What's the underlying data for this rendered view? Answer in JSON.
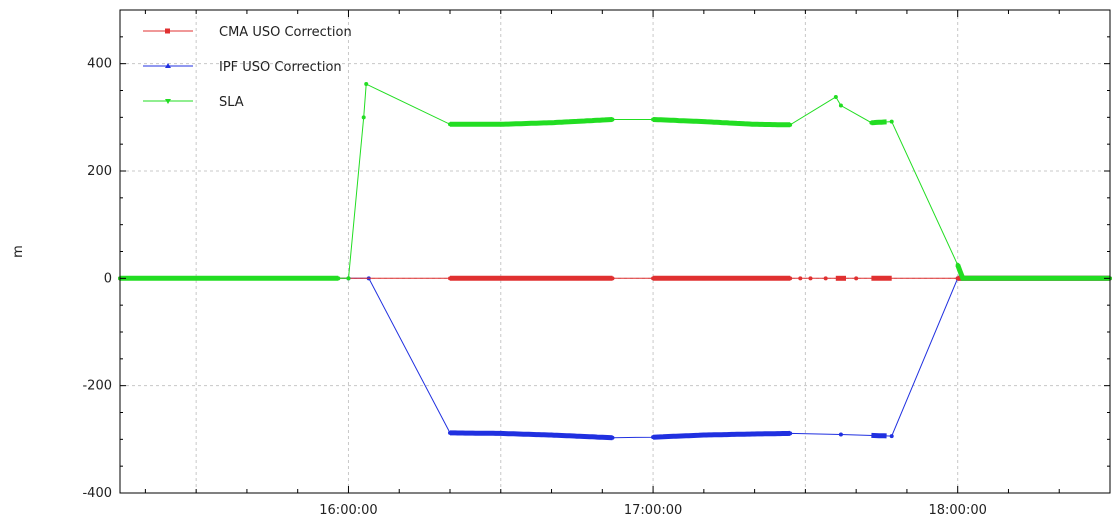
{
  "chart_data": {
    "type": "line",
    "title": "",
    "xlabel": "",
    "ylabel": "m",
    "x_unit": "time",
    "xlim": [
      "15:15:00",
      "18:30:00"
    ],
    "ylim": [
      -400,
      500
    ],
    "y_ticks": [
      -400,
      -200,
      0,
      200,
      400
    ],
    "x_ticks": [
      "16:00:00",
      "17:00:00",
      "18:00:00"
    ],
    "grid": true,
    "legend_position": "top-left",
    "series": [
      {
        "name": "CMA USO Correction",
        "color": "#e03030",
        "marker": "square",
        "points": [
          [
            "15:15:00",
            0
          ],
          [
            "16:20:00",
            0
          ],
          [
            "16:34:00",
            0
          ],
          [
            "16:36:00",
            0
          ],
          [
            "16:45:00",
            0
          ],
          [
            "16:52:00",
            0
          ],
          [
            "17:00:00",
            0
          ],
          [
            "17:10:00",
            0
          ],
          [
            "17:20:00",
            0
          ],
          [
            "17:27:00",
            0
          ],
          [
            "17:29:00",
            0
          ],
          [
            "17:31:00",
            0
          ],
          [
            "17:34:00",
            0
          ],
          [
            "17:40:00",
            0
          ],
          [
            "18:00:00",
            0
          ],
          [
            "18:30:00",
            0
          ]
        ],
        "dense_segments": [
          [
            "16:20:00",
            "16:52:00"
          ],
          [
            "17:00:00",
            "17:27:00"
          ],
          [
            "17:36:00",
            "17:38:00"
          ],
          [
            "17:43:00",
            "17:47:00"
          ],
          [
            "18:00:00",
            "18:30:00"
          ]
        ]
      },
      {
        "name": "IPF USO Correction",
        "color": "#2030e0",
        "marker": "triangle",
        "points": [
          [
            "15:15:00",
            0
          ],
          [
            "15:48:00",
            0
          ],
          [
            "16:00:00",
            0
          ],
          [
            "16:04:00",
            0
          ],
          [
            "16:20:00",
            -288
          ],
          [
            "16:30:00",
            -289
          ],
          [
            "16:40:00",
            -292
          ],
          [
            "16:52:00",
            -297
          ],
          [
            "17:00:00",
            -296
          ],
          [
            "17:10:00",
            -292
          ],
          [
            "17:20:00",
            -290
          ],
          [
            "17:27:00",
            -289
          ],
          [
            "17:37:00",
            -291
          ],
          [
            "17:44:00",
            -293
          ],
          [
            "17:47:00",
            -294
          ],
          [
            "18:00:00",
            0
          ],
          [
            "18:30:00",
            0
          ]
        ],
        "dense_segments": [
          [
            "16:20:00",
            "16:52:00"
          ],
          [
            "17:00:00",
            "17:27:00"
          ],
          [
            "17:43:00",
            "17:46:00"
          ],
          [
            "18:00:00",
            "18:30:00"
          ]
        ]
      },
      {
        "name": "SLA",
        "color": "#22dd22",
        "marker": "triangle-down",
        "points": [
          [
            "15:15:00",
            0
          ],
          [
            "15:58:00",
            0
          ],
          [
            "16:00:00",
            0
          ],
          [
            "16:03:00",
            300
          ],
          [
            "16:03:30",
            362
          ],
          [
            "16:20:00",
            287
          ],
          [
            "16:30:00",
            287
          ],
          [
            "16:40:00",
            290
          ],
          [
            "16:52:00",
            296
          ],
          [
            "17:00:00",
            296
          ],
          [
            "17:10:00",
            292
          ],
          [
            "17:20:00",
            287
          ],
          [
            "17:27:00",
            286
          ],
          [
            "17:36:00",
            338
          ],
          [
            "17:37:00",
            322
          ],
          [
            "17:43:00",
            290
          ],
          [
            "17:47:00",
            292
          ],
          [
            "18:00:00",
            25
          ],
          [
            "18:01:00",
            0
          ],
          [
            "18:30:00",
            0
          ]
        ],
        "dense_segments": [
          [
            "15:15:00",
            "15:58:00"
          ],
          [
            "16:20:00",
            "16:52:00"
          ],
          [
            "17:00:00",
            "17:27:00"
          ],
          [
            "17:43:00",
            "17:46:00"
          ],
          [
            "18:00:00",
            "18:30:00"
          ]
        ]
      }
    ]
  }
}
